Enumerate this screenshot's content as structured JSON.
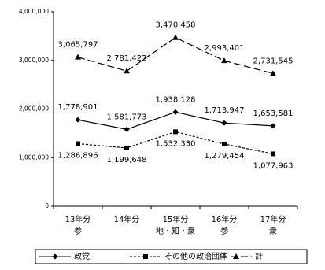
{
  "chart_data": {
    "type": "line",
    "categories": [
      "13年分",
      "14年分",
      "15年分",
      "16年分",
      "17年分"
    ],
    "category_notes": [
      "参",
      null,
      "地・知・衆",
      "参",
      "衆"
    ],
    "ylim": [
      0,
      4000000
    ],
    "yticks": [
      0,
      {
        "value": 1000000,
        "label": "1,000,000"
      },
      {
        "value": 2000000,
        "label": "2,000,000"
      },
      {
        "value": 3000000,
        "label": "3,000,000"
      },
      {
        "value": 4000000,
        "label": "4,000,000"
      }
    ],
    "grid": false,
    "legend": "bottom",
    "series": [
      {
        "name": "政党",
        "color": "#000000",
        "line_style": "solid",
        "marker": "diamond",
        "label_position": "above",
        "values": [
          1778901,
          1581773,
          1938128,
          1713947,
          1653581
        ],
        "value_labels": [
          "1,778,901",
          "1,581,773",
          "1,938,128",
          "1,713,947",
          "1,653,581"
        ]
      },
      {
        "name": "その他の政治団体",
        "color": "#000000",
        "line_style": "dotted",
        "marker": "square",
        "label_position": "below",
        "values": [
          1286896,
          1199648,
          1532330,
          1279454,
          1077963
        ],
        "value_labels": [
          "1,286,896",
          "1,199,648",
          "1,532,330",
          "1,279,454",
          "1,077,963"
        ]
      },
      {
        "name": "計",
        "color": "#000000",
        "line_style": "dashed",
        "marker": "triangle",
        "label_position": "above",
        "values": [
          3065797,
          2781422,
          3470458,
          2993401,
          2731545
        ],
        "value_labels": [
          "3,065,797",
          "2,781,422",
          "3,470,458",
          "2,993,401",
          "2,731,545"
        ]
      }
    ]
  }
}
